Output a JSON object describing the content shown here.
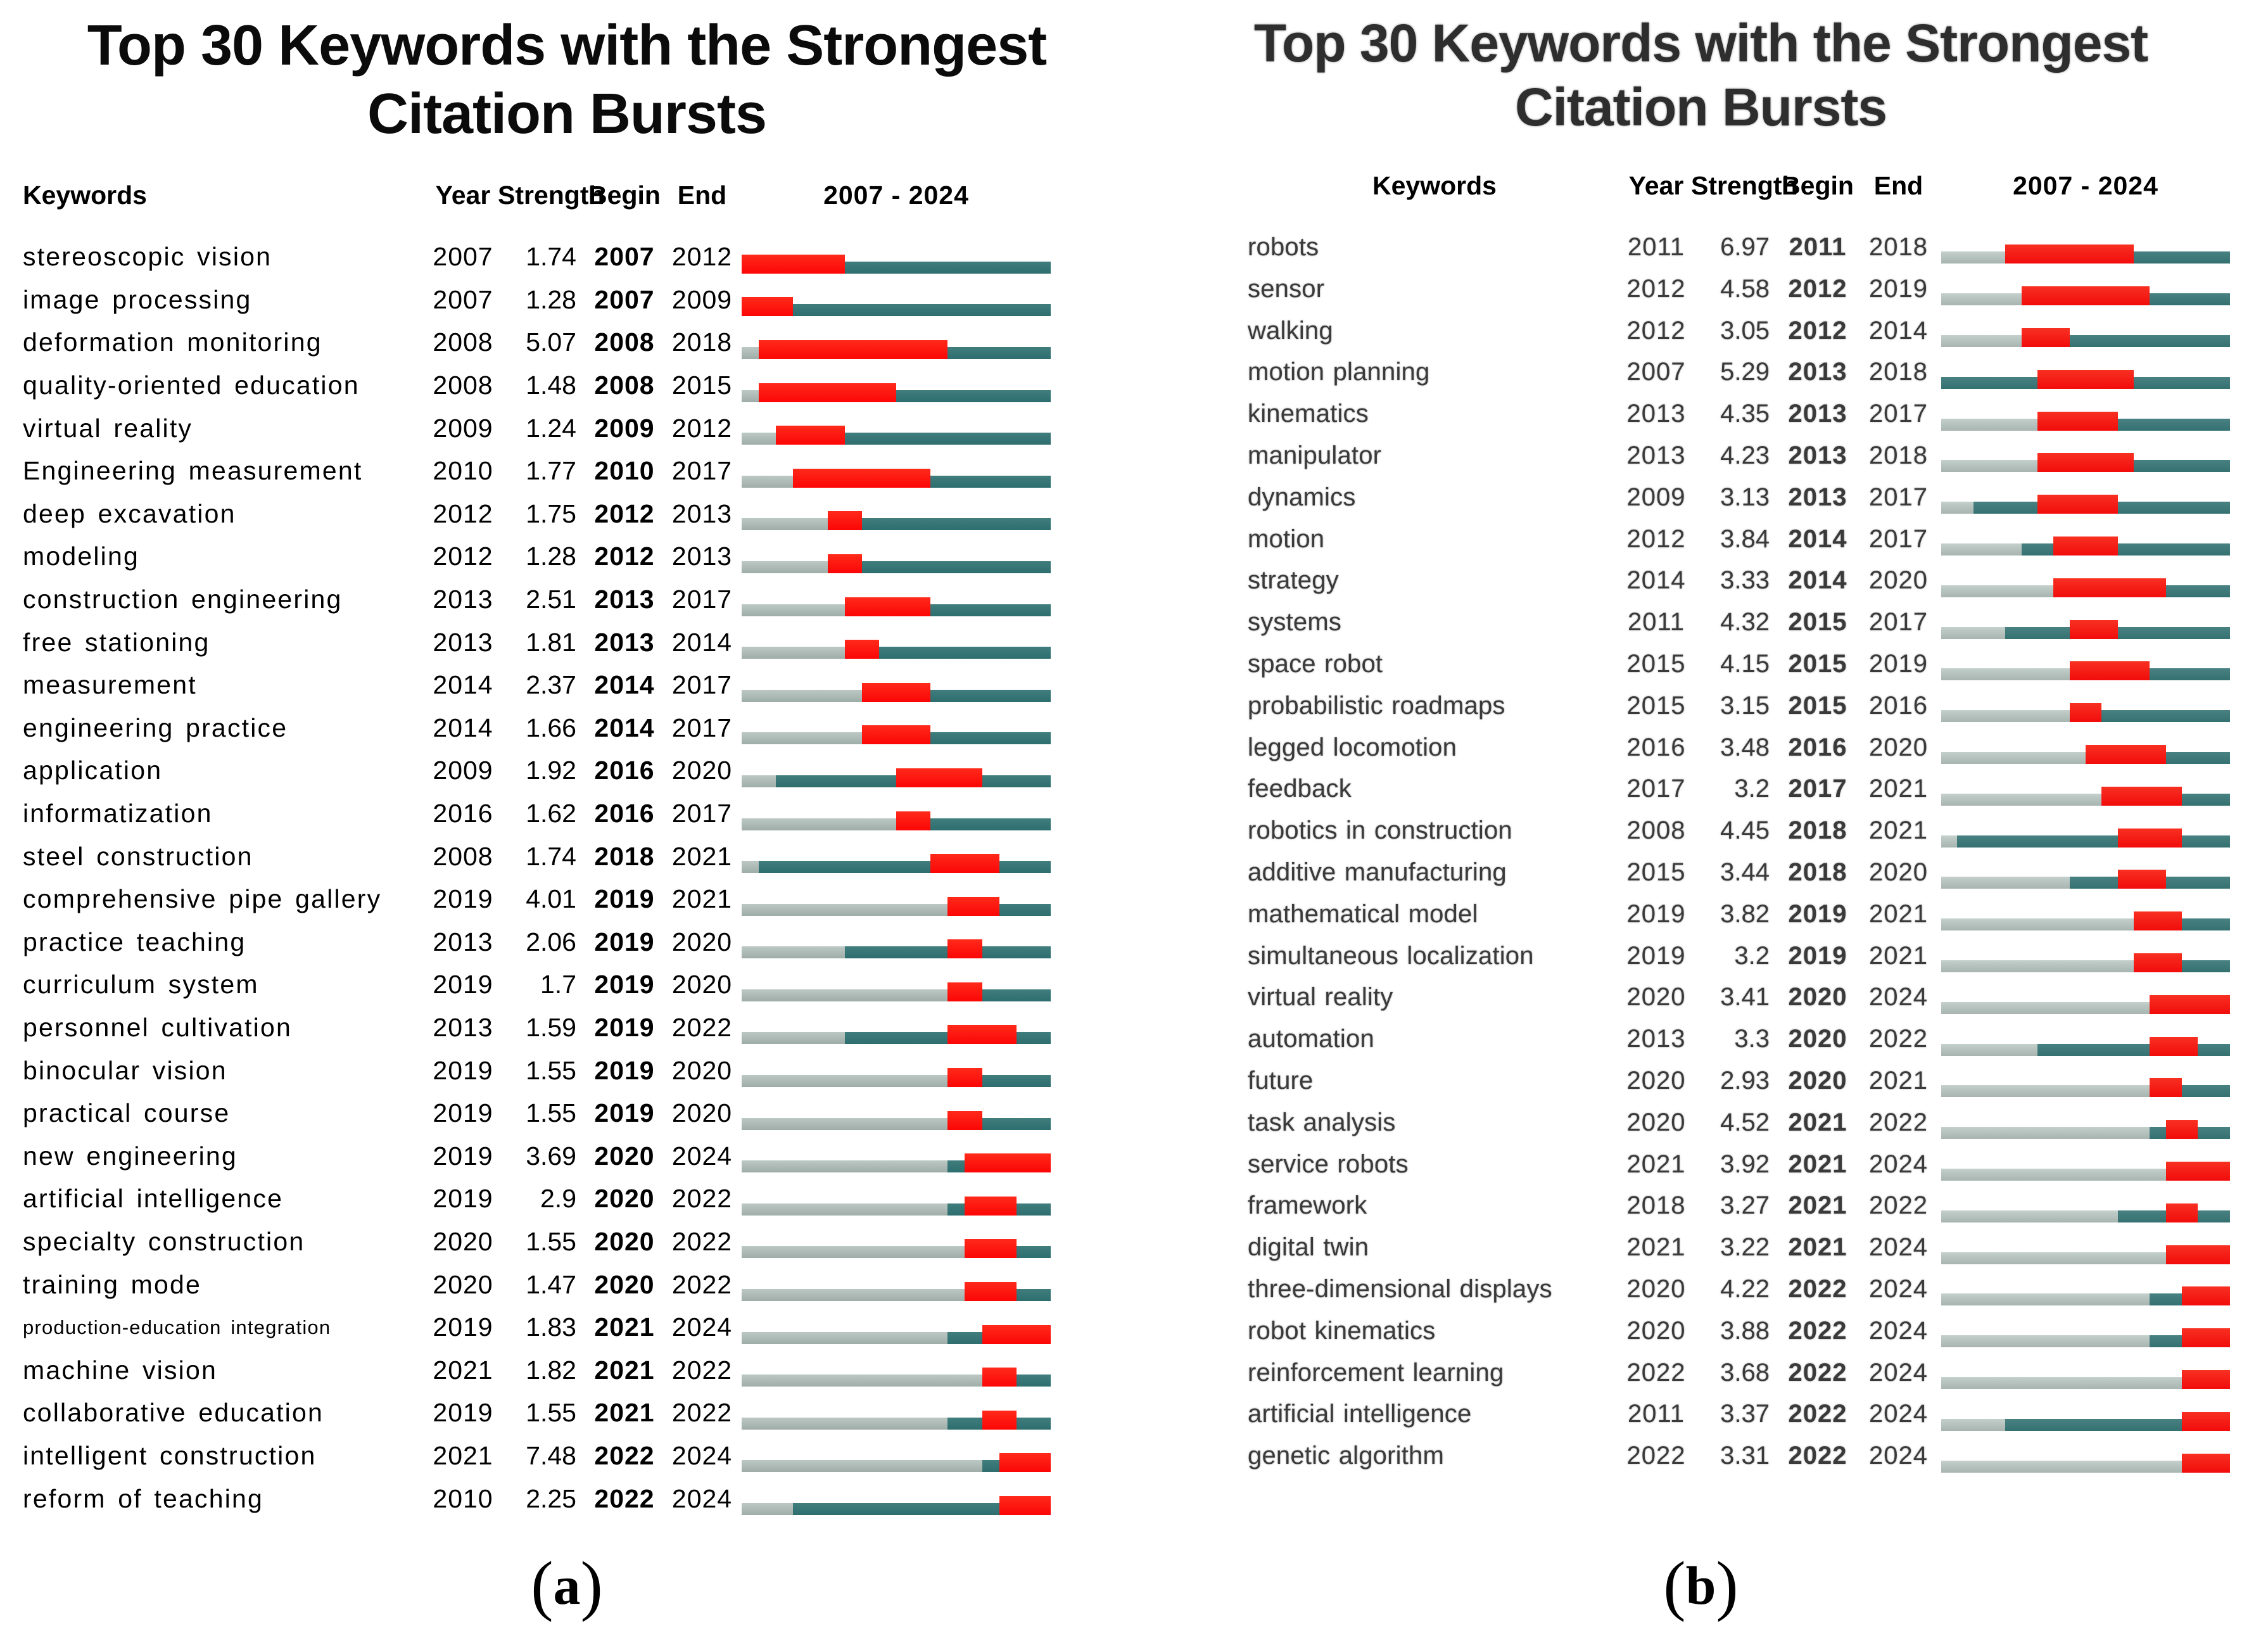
{
  "colors": {
    "pre_gray": "#9fada9",
    "pre_gray_light": "#bcc8c4",
    "active_teal": "#2e6e6f",
    "active_teal_light": "#417d7d",
    "burst_red": "#fb0606",
    "burst_red_light": "#ff2a1a"
  },
  "chart_data": [
    {
      "type": "table",
      "id": "a",
      "title_line1": "Top 30 Keywords with the Strongest",
      "title_line2": "Citation Bursts",
      "header": {
        "keywords": "Keywords",
        "year": "Year",
        "strength": "Strength",
        "begin": "Begin",
        "end": "End",
        "range": "2007 - 2024"
      },
      "timeline": {
        "start_year": 2007,
        "end_year": 2024
      },
      "caption_open": "(",
      "caption_letter": "a",
      "caption_close": ")",
      "rows": [
        {
          "keyword": "stereoscopic vision",
          "year": 2007,
          "strength": "1.74",
          "begin": 2007,
          "end": 2012
        },
        {
          "keyword": "image processing",
          "year": 2007,
          "strength": "1.28",
          "begin": 2007,
          "end": 2009
        },
        {
          "keyword": "deformation monitoring",
          "year": 2008,
          "strength": "5.07",
          "begin": 2008,
          "end": 2018
        },
        {
          "keyword": "quality-oriented education",
          "year": 2008,
          "strength": "1.48",
          "begin": 2008,
          "end": 2015
        },
        {
          "keyword": "virtual reality",
          "year": 2009,
          "strength": "1.24",
          "begin": 2009,
          "end": 2012
        },
        {
          "keyword": "Engineering measurement",
          "year": 2010,
          "strength": "1.77",
          "begin": 2010,
          "end": 2017
        },
        {
          "keyword": "deep excavation",
          "year": 2012,
          "strength": "1.75",
          "begin": 2012,
          "end": 2013
        },
        {
          "keyword": "modeling",
          "year": 2012,
          "strength": "1.28",
          "begin": 2012,
          "end": 2013
        },
        {
          "keyword": "construction engineering",
          "year": 2013,
          "strength": "2.51",
          "begin": 2013,
          "end": 2017
        },
        {
          "keyword": "free stationing",
          "year": 2013,
          "strength": "1.81",
          "begin": 2013,
          "end": 2014
        },
        {
          "keyword": "measurement",
          "year": 2014,
          "strength": "2.37",
          "begin": 2014,
          "end": 2017
        },
        {
          "keyword": "engineering practice",
          "year": 2014,
          "strength": "1.66",
          "begin": 2014,
          "end": 2017
        },
        {
          "keyword": "application",
          "year": 2009,
          "strength": "1.92",
          "begin": 2016,
          "end": 2020
        },
        {
          "keyword": "informatization",
          "year": 2016,
          "strength": "1.62",
          "begin": 2016,
          "end": 2017
        },
        {
          "keyword": "steel construction",
          "year": 2008,
          "strength": "1.74",
          "begin": 2018,
          "end": 2021
        },
        {
          "keyword": "comprehensive pipe gallery",
          "year": 2019,
          "strength": "4.01",
          "begin": 2019,
          "end": 2021
        },
        {
          "keyword": "practice teaching",
          "year": 2013,
          "strength": "2.06",
          "begin": 2019,
          "end": 2020
        },
        {
          "keyword": "curriculum system",
          "year": 2019,
          "strength": "1.7",
          "begin": 2019,
          "end": 2020
        },
        {
          "keyword": "personnel cultivation",
          "year": 2013,
          "strength": "1.59",
          "begin": 2019,
          "end": 2022
        },
        {
          "keyword": "binocular vision",
          "year": 2019,
          "strength": "1.55",
          "begin": 2019,
          "end": 2020
        },
        {
          "keyword": "practical course",
          "year": 2019,
          "strength": "1.55",
          "begin": 2019,
          "end": 2020
        },
        {
          "keyword": "new engineering",
          "year": 2019,
          "strength": "3.69",
          "begin": 2020,
          "end": 2024
        },
        {
          "keyword": "artificial intelligence",
          "year": 2019,
          "strength": "2.9",
          "begin": 2020,
          "end": 2022
        },
        {
          "keyword": "specialty construction",
          "year": 2020,
          "strength": "1.55",
          "begin": 2020,
          "end": 2022
        },
        {
          "keyword": "training mode",
          "year": 2020,
          "strength": "1.47",
          "begin": 2020,
          "end": 2022
        },
        {
          "keyword": "production-education integration",
          "year": 2019,
          "strength": "1.83",
          "begin": 2021,
          "end": 2024
        },
        {
          "keyword": "machine vision",
          "year": 2021,
          "strength": "1.82",
          "begin": 2021,
          "end": 2022
        },
        {
          "keyword": "collaborative education",
          "year": 2019,
          "strength": "1.55",
          "begin": 2021,
          "end": 2022
        },
        {
          "keyword": "intelligent construction",
          "year": 2021,
          "strength": "7.48",
          "begin": 2022,
          "end": 2024
        },
        {
          "keyword": "reform of teaching",
          "year": 2010,
          "strength": "2.25",
          "begin": 2022,
          "end": 2024
        }
      ]
    },
    {
      "type": "table",
      "id": "b",
      "title_line1": "Top 30 Keywords with the Strongest",
      "title_line2": "Citation Bursts",
      "header": {
        "keywords": "Keywords",
        "year": "Year",
        "strength": "Strength",
        "begin": "Begin",
        "end": "End",
        "range": "2007 - 2024"
      },
      "timeline": {
        "start_year": 2007,
        "end_year": 2024
      },
      "caption_open": "(",
      "caption_letter": "b",
      "caption_close": ")",
      "rows": [
        {
          "keyword": "robots",
          "year": 2011,
          "strength": "6.97",
          "begin": 2011,
          "end": 2018
        },
        {
          "keyword": "sensor",
          "year": 2012,
          "strength": "4.58",
          "begin": 2012,
          "end": 2019
        },
        {
          "keyword": "walking",
          "year": 2012,
          "strength": "3.05",
          "begin": 2012,
          "end": 2014
        },
        {
          "keyword": "motion planning",
          "year": 2007,
          "strength": "5.29",
          "begin": 2013,
          "end": 2018
        },
        {
          "keyword": "kinematics",
          "year": 2013,
          "strength": "4.35",
          "begin": 2013,
          "end": 2017
        },
        {
          "keyword": "manipulator",
          "year": 2013,
          "strength": "4.23",
          "begin": 2013,
          "end": 2018
        },
        {
          "keyword": "dynamics",
          "year": 2009,
          "strength": "3.13",
          "begin": 2013,
          "end": 2017
        },
        {
          "keyword": "motion",
          "year": 2012,
          "strength": "3.84",
          "begin": 2014,
          "end": 2017
        },
        {
          "keyword": "strategy",
          "year": 2014,
          "strength": "3.33",
          "begin": 2014,
          "end": 2020
        },
        {
          "keyword": "systems",
          "year": 2011,
          "strength": "4.32",
          "begin": 2015,
          "end": 2017
        },
        {
          "keyword": "space robot",
          "year": 2015,
          "strength": "4.15",
          "begin": 2015,
          "end": 2019
        },
        {
          "keyword": "probabilistic roadmaps",
          "year": 2015,
          "strength": "3.15",
          "begin": 2015,
          "end": 2016
        },
        {
          "keyword": "legged locomotion",
          "year": 2016,
          "strength": "3.48",
          "begin": 2016,
          "end": 2020
        },
        {
          "keyword": "feedback",
          "year": 2017,
          "strength": "3.2",
          "begin": 2017,
          "end": 2021
        },
        {
          "keyword": "robotics in construction",
          "year": 2008,
          "strength": "4.45",
          "begin": 2018,
          "end": 2021
        },
        {
          "keyword": "additive manufacturing",
          "year": 2015,
          "strength": "3.44",
          "begin": 2018,
          "end": 2020
        },
        {
          "keyword": "mathematical model",
          "year": 2019,
          "strength": "3.82",
          "begin": 2019,
          "end": 2021
        },
        {
          "keyword": "simultaneous localization",
          "year": 2019,
          "strength": "3.2",
          "begin": 2019,
          "end": 2021
        },
        {
          "keyword": "virtual reality",
          "year": 2020,
          "strength": "3.41",
          "begin": 2020,
          "end": 2024
        },
        {
          "keyword": "automation",
          "year": 2013,
          "strength": "3.3",
          "begin": 2020,
          "end": 2022
        },
        {
          "keyword": "future",
          "year": 2020,
          "strength": "2.93",
          "begin": 2020,
          "end": 2021
        },
        {
          "keyword": "task analysis",
          "year": 2020,
          "strength": "4.52",
          "begin": 2021,
          "end": 2022
        },
        {
          "keyword": "service robots",
          "year": 2021,
          "strength": "3.92",
          "begin": 2021,
          "end": 2024
        },
        {
          "keyword": "framework",
          "year": 2018,
          "strength": "3.27",
          "begin": 2021,
          "end": 2022
        },
        {
          "keyword": "digital twin",
          "year": 2021,
          "strength": "3.22",
          "begin": 2021,
          "end": 2024
        },
        {
          "keyword": "three-dimensional displays",
          "year": 2020,
          "strength": "4.22",
          "begin": 2022,
          "end": 2024
        },
        {
          "keyword": "robot kinematics",
          "year": 2020,
          "strength": "3.88",
          "begin": 2022,
          "end": 2024
        },
        {
          "keyword": "reinforcement learning",
          "year": 2022,
          "strength": "3.68",
          "begin": 2022,
          "end": 2024
        },
        {
          "keyword": "artificial intelligence",
          "year": 2011,
          "strength": "3.37",
          "begin": 2022,
          "end": 2024
        },
        {
          "keyword": "genetic algorithm",
          "year": 2022,
          "strength": "3.31",
          "begin": 2022,
          "end": 2024
        }
      ]
    }
  ]
}
